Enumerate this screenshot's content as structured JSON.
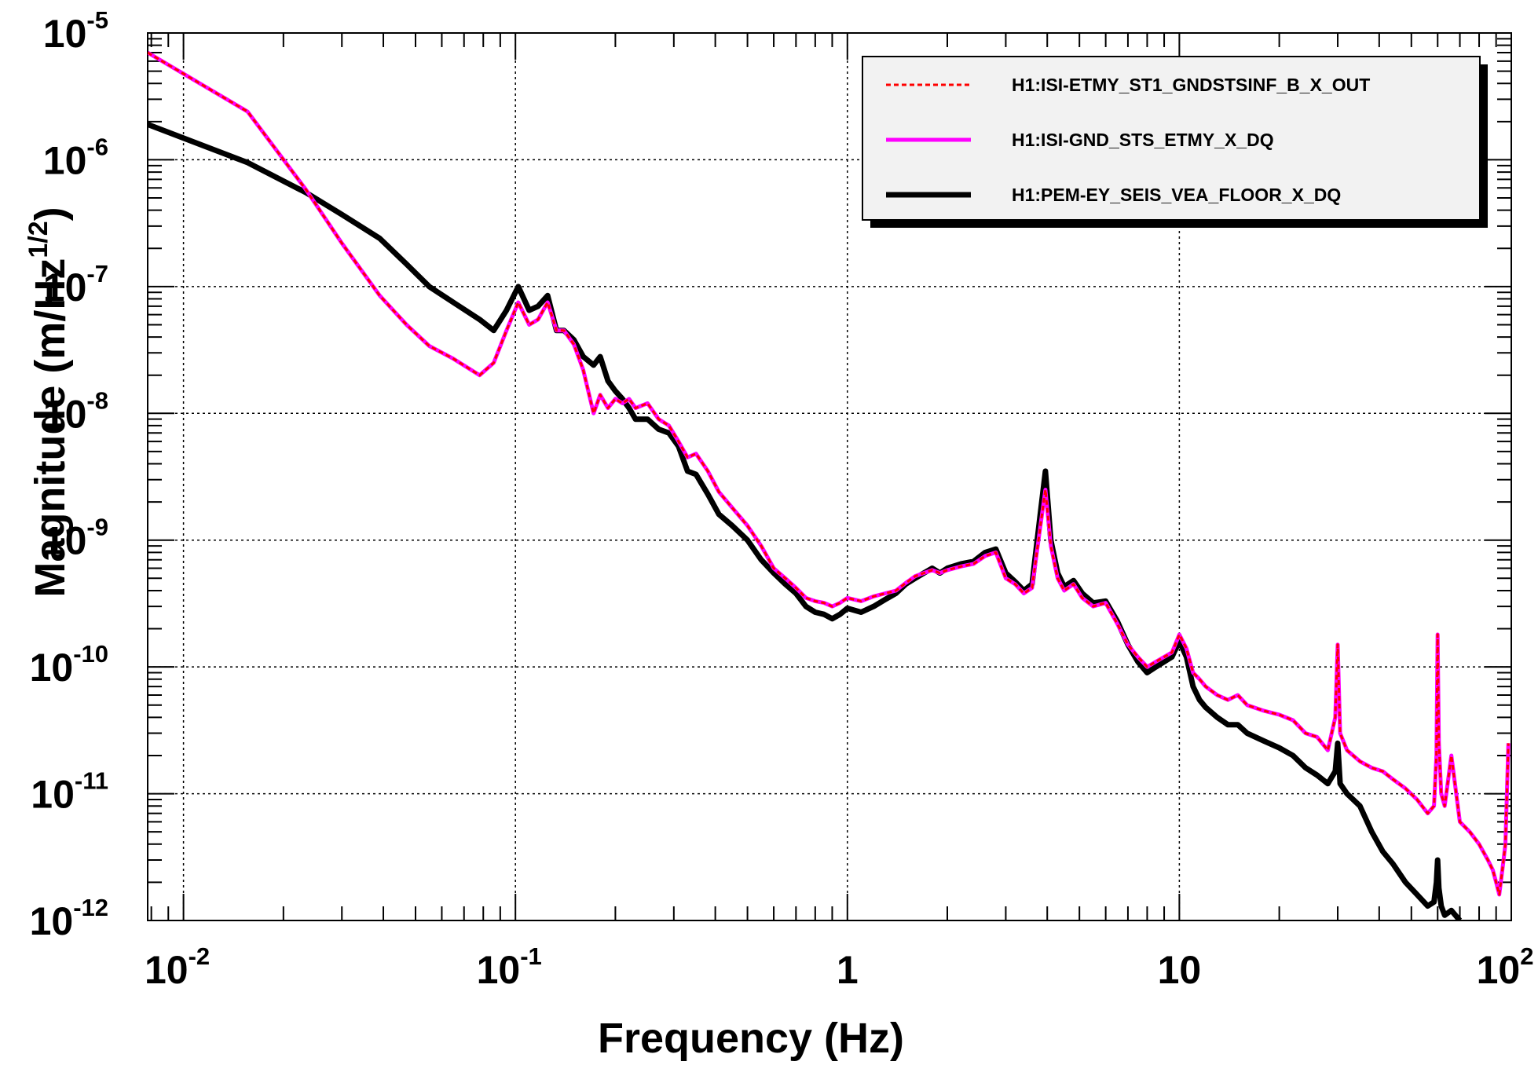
{
  "chart_data": {
    "type": "line",
    "scale": {
      "x": "log",
      "y": "log"
    },
    "xlabel": "Frequency (Hz)",
    "ylabel_main": "Magnitude (m/Hz",
    "ylabel_sup": "1/2",
    "ylabel_close": ")",
    "xlim": [
      0.0078,
      100
    ],
    "ylim": [
      1e-12,
      1e-05
    ],
    "grid": true,
    "legend_position": "top-right",
    "x_ticks": [
      {
        "value": 0.01,
        "base": "10",
        "exp": "-2"
      },
      {
        "value": 0.1,
        "base": "10",
        "exp": "-1"
      },
      {
        "value": 1,
        "base": "1",
        "exp": ""
      },
      {
        "value": 10,
        "base": "10",
        "exp": ""
      },
      {
        "value": 100,
        "base": "10",
        "exp": "2"
      }
    ],
    "y_ticks": [
      {
        "value": 1e-05,
        "base": "10",
        "exp": "-5"
      },
      {
        "value": 1e-06,
        "base": "10",
        "exp": "-6"
      },
      {
        "value": 1e-07,
        "base": "10",
        "exp": "-7"
      },
      {
        "value": 1e-08,
        "base": "10",
        "exp": "-8"
      },
      {
        "value": 1e-09,
        "base": "10",
        "exp": "-9"
      },
      {
        "value": 1e-10,
        "base": "10",
        "exp": "-10"
      },
      {
        "value": 1e-11,
        "base": "10",
        "exp": "-11"
      },
      {
        "value": 1e-12,
        "base": "10",
        "exp": "-12"
      }
    ],
    "series": [
      {
        "name": "H1:ISI-ETMY_ST1_GNDSTSINF_B_X_OUT",
        "color": "#ff0000",
        "style": "dashed",
        "x": [
          0.0078,
          0.0156,
          0.0234,
          0.03,
          0.039,
          0.047,
          0.055,
          0.065,
          0.078,
          0.086,
          0.094,
          0.102,
          0.11,
          0.117,
          0.125,
          0.133,
          0.14,
          0.15,
          0.16,
          0.172,
          0.18,
          0.19,
          0.2,
          0.21,
          0.22,
          0.23,
          0.25,
          0.27,
          0.29,
          0.31,
          0.33,
          0.35,
          0.38,
          0.41,
          0.45,
          0.5,
          0.55,
          0.6,
          0.65,
          0.7,
          0.75,
          0.8,
          0.85,
          0.9,
          0.95,
          1.0,
          1.1,
          1.2,
          1.3,
          1.4,
          1.5,
          1.6,
          1.7,
          1.8,
          1.9,
          2.0,
          2.2,
          2.4,
          2.6,
          2.8,
          3.0,
          3.2,
          3.4,
          3.6,
          3.8,
          3.95,
          4.1,
          4.3,
          4.5,
          4.8,
          5.1,
          5.5,
          6.0,
          6.5,
          7.0,
          7.5,
          8.0,
          8.5,
          9.0,
          9.5,
          10.0,
          10.5,
          11.0,
          11.5,
          12.0,
          13.0,
          14.0,
          15.0,
          16.0,
          18.0,
          20.0,
          22.0,
          24.0,
          26.0,
          28.0,
          29.5,
          30.0,
          30.5,
          32.0,
          35.0,
          38.0,
          41.0,
          44.0,
          48.0,
          52.0,
          56.0,
          58.5,
          59.5,
          60.0,
          60.5,
          61.5,
          63.0,
          66.0,
          70.0,
          75.0,
          80.0,
          85.0,
          88.0,
          90.0,
          92.0,
          94.0,
          96.0,
          98.0
        ],
        "y": [
          7e-06,
          2.4e-06,
          5.8e-07,
          2.2e-07,
          8.5e-08,
          5e-08,
          3.4e-08,
          2.7e-08,
          2e-08,
          2.5e-08,
          4.5e-08,
          7.5e-08,
          5e-08,
          5.5e-08,
          7.5e-08,
          4.5e-08,
          4.5e-08,
          3.5e-08,
          2.2e-08,
          1e-08,
          1.4e-08,
          1.1e-08,
          1.3e-08,
          1.2e-08,
          1.3e-08,
          1.1e-08,
          1.2e-08,
          9e-09,
          8e-09,
          6e-09,
          4.5e-09,
          4.8e-09,
          3.5e-09,
          2.4e-09,
          1.8e-09,
          1.3e-09,
          9e-10,
          6e-10,
          5e-10,
          4.2e-10,
          3.5e-10,
          3.3e-10,
          3.2e-10,
          3e-10,
          3.2e-10,
          3.5e-10,
          3.3e-10,
          3.6e-10,
          3.8e-10,
          4e-10,
          4.6e-10,
          5.2e-10,
          5.5e-10,
          5.8e-10,
          5.5e-10,
          5.8e-10,
          6.2e-10,
          6.5e-10,
          7.5e-10,
          8e-10,
          5e-10,
          4.5e-10,
          3.8e-10,
          4.2e-10,
          1.2e-09,
          2.5e-09,
          9e-10,
          5e-10,
          4e-10,
          4.5e-10,
          3.5e-10,
          3e-10,
          3.2e-10,
          2.2e-10,
          1.5e-10,
          1.2e-10,
          1e-10,
          1.1e-10,
          1.2e-10,
          1.3e-10,
          1.8e-10,
          1.4e-10,
          9e-11,
          8e-11,
          7e-11,
          6e-11,
          5.5e-11,
          6e-11,
          5e-11,
          4.5e-11,
          4.2e-11,
          3.8e-11,
          3e-11,
          2.8e-11,
          2.2e-11,
          4e-11,
          1.5e-10,
          3e-11,
          2.2e-11,
          1.8e-11,
          1.6e-11,
          1.5e-11,
          1.3e-11,
          1.1e-11,
          9e-12,
          7e-12,
          8e-12,
          2e-11,
          1.8e-10,
          2.5e-11,
          1e-11,
          8e-12,
          2e-11,
          6e-12,
          5e-12,
          4e-12,
          3e-12,
          2.5e-12,
          2e-12,
          1.6e-12,
          2.5e-12,
          4e-12,
          2.5e-11
        ]
      },
      {
        "name": "H1:ISI-GND_STS_ETMY_X_DQ",
        "color": "#ff00ff",
        "style": "solid",
        "x": [
          0.0078,
          0.0156,
          0.0234,
          0.03,
          0.039,
          0.047,
          0.055,
          0.065,
          0.078,
          0.086,
          0.094,
          0.102,
          0.11,
          0.117,
          0.125,
          0.133,
          0.14,
          0.15,
          0.16,
          0.172,
          0.18,
          0.19,
          0.2,
          0.21,
          0.22,
          0.23,
          0.25,
          0.27,
          0.29,
          0.31,
          0.33,
          0.35,
          0.38,
          0.41,
          0.45,
          0.5,
          0.55,
          0.6,
          0.65,
          0.7,
          0.75,
          0.8,
          0.85,
          0.9,
          0.95,
          1.0,
          1.1,
          1.2,
          1.3,
          1.4,
          1.5,
          1.6,
          1.7,
          1.8,
          1.9,
          2.0,
          2.2,
          2.4,
          2.6,
          2.8,
          3.0,
          3.2,
          3.4,
          3.6,
          3.8,
          3.95,
          4.1,
          4.3,
          4.5,
          4.8,
          5.1,
          5.5,
          6.0,
          6.5,
          7.0,
          7.5,
          8.0,
          8.5,
          9.0,
          9.5,
          10.0,
          10.5,
          11.0,
          11.5,
          12.0,
          13.0,
          14.0,
          15.0,
          16.0,
          18.0,
          20.0,
          22.0,
          24.0,
          26.0,
          28.0,
          29.5,
          30.0,
          30.5,
          32.0,
          35.0,
          38.0,
          41.0,
          44.0,
          48.0,
          52.0,
          56.0,
          58.5,
          59.5,
          60.0,
          60.5,
          61.5,
          63.0,
          66.0,
          70.0,
          75.0,
          80.0,
          85.0,
          88.0,
          90.0,
          92.0,
          94.0,
          96.0,
          98.0
        ],
        "y": [
          7e-06,
          2.4e-06,
          5.8e-07,
          2.2e-07,
          8.5e-08,
          5e-08,
          3.4e-08,
          2.7e-08,
          2e-08,
          2.5e-08,
          4.5e-08,
          7.5e-08,
          5e-08,
          5.5e-08,
          7.5e-08,
          4.5e-08,
          4.5e-08,
          3.5e-08,
          2.2e-08,
          1e-08,
          1.4e-08,
          1.1e-08,
          1.3e-08,
          1.2e-08,
          1.3e-08,
          1.1e-08,
          1.2e-08,
          9e-09,
          8e-09,
          6e-09,
          4.5e-09,
          4.8e-09,
          3.5e-09,
          2.4e-09,
          1.8e-09,
          1.3e-09,
          9e-10,
          6e-10,
          5e-10,
          4.2e-10,
          3.5e-10,
          3.3e-10,
          3.2e-10,
          3e-10,
          3.2e-10,
          3.5e-10,
          3.3e-10,
          3.6e-10,
          3.8e-10,
          4e-10,
          4.6e-10,
          5.2e-10,
          5.5e-10,
          5.8e-10,
          5.5e-10,
          5.8e-10,
          6.2e-10,
          6.5e-10,
          7.5e-10,
          8e-10,
          5e-10,
          4.5e-10,
          3.8e-10,
          4.2e-10,
          1.2e-09,
          2.5e-09,
          9e-10,
          5e-10,
          4e-10,
          4.5e-10,
          3.5e-10,
          3e-10,
          3.2e-10,
          2.2e-10,
          1.5e-10,
          1.2e-10,
          1e-10,
          1.1e-10,
          1.2e-10,
          1.3e-10,
          1.8e-10,
          1.4e-10,
          9e-11,
          8e-11,
          7e-11,
          6e-11,
          5.5e-11,
          6e-11,
          5e-11,
          4.5e-11,
          4.2e-11,
          3.8e-11,
          3e-11,
          2.8e-11,
          2.2e-11,
          4e-11,
          1.5e-10,
          3e-11,
          2.2e-11,
          1.8e-11,
          1.6e-11,
          1.5e-11,
          1.3e-11,
          1.1e-11,
          9e-12,
          7e-12,
          8e-12,
          2e-11,
          1.8e-10,
          2.5e-11,
          1e-11,
          8e-12,
          2e-11,
          6e-12,
          5e-12,
          4e-12,
          3e-12,
          2.5e-12,
          2e-12,
          1.6e-12,
          2.5e-12,
          4e-12,
          2.5e-11
        ]
      },
      {
        "name": "H1:PEM-EY_SEIS_VEA_FLOOR_X_DQ",
        "color": "#000000",
        "style": "solid",
        "x": [
          0.0078,
          0.0156,
          0.0234,
          0.03,
          0.039,
          0.047,
          0.055,
          0.065,
          0.078,
          0.086,
          0.094,
          0.102,
          0.11,
          0.117,
          0.125,
          0.133,
          0.14,
          0.15,
          0.16,
          0.172,
          0.18,
          0.19,
          0.2,
          0.21,
          0.22,
          0.23,
          0.25,
          0.27,
          0.29,
          0.31,
          0.33,
          0.35,
          0.38,
          0.41,
          0.45,
          0.5,
          0.55,
          0.6,
          0.65,
          0.7,
          0.75,
          0.8,
          0.85,
          0.9,
          0.95,
          1.0,
          1.1,
          1.2,
          1.3,
          1.4,
          1.5,
          1.6,
          1.7,
          1.8,
          1.9,
          2.0,
          2.2,
          2.4,
          2.6,
          2.8,
          3.0,
          3.2,
          3.4,
          3.6,
          3.8,
          3.95,
          4.1,
          4.3,
          4.5,
          4.8,
          5.1,
          5.5,
          6.0,
          6.5,
          7.0,
          7.5,
          8.0,
          8.5,
          9.0,
          9.5,
          10.0,
          10.5,
          11.0,
          11.5,
          12.0,
          13.0,
          14.0,
          15.0,
          16.0,
          18.0,
          20.0,
          22.0,
          24.0,
          26.0,
          28.0,
          29.5,
          30.0,
          30.5,
          32.0,
          35.0,
          38.0,
          41.0,
          44.0,
          48.0,
          52.0,
          56.0,
          58.5,
          59.5,
          60.0,
          60.5,
          61.5,
          63.0,
          66.0,
          70.0
        ],
        "y": [
          1.9e-06,
          9.5e-07,
          5.5e-07,
          3.7e-07,
          2.4e-07,
          1.5e-07,
          1e-07,
          7.5e-08,
          5.5e-08,
          4.5e-08,
          6.5e-08,
          1e-07,
          6.5e-08,
          7e-08,
          8.5e-08,
          4.5e-08,
          4.5e-08,
          3.8e-08,
          2.8e-08,
          2.4e-08,
          2.8e-08,
          1.8e-08,
          1.5e-08,
          1.3e-08,
          1.1e-08,
          9e-09,
          9e-09,
          7.5e-09,
          7e-09,
          5.5e-09,
          3.5e-09,
          3.3e-09,
          2.3e-09,
          1.6e-09,
          1.3e-09,
          1e-09,
          7e-10,
          5.5e-10,
          4.5e-10,
          3.8e-10,
          3e-10,
          2.7e-10,
          2.6e-10,
          2.4e-10,
          2.6e-10,
          2.9e-10,
          2.7e-10,
          3e-10,
          3.4e-10,
          3.8e-10,
          4.5e-10,
          5e-10,
          5.5e-10,
          6e-10,
          5.5e-10,
          6e-10,
          6.5e-10,
          6.8e-10,
          8e-10,
          8.5e-10,
          5.5e-10,
          4.7e-10,
          4e-10,
          4.5e-10,
          1.5e-09,
          3.5e-09,
          1e-09,
          5.5e-10,
          4.3e-10,
          4.8e-10,
          3.8e-10,
          3.2e-10,
          3.3e-10,
          2.3e-10,
          1.5e-10,
          1.1e-10,
          9e-11,
          1e-10,
          1.1e-10,
          1.2e-10,
          1.6e-10,
          1.2e-10,
          7e-11,
          5.5e-11,
          4.8e-11,
          4e-11,
          3.5e-11,
          3.5e-11,
          3e-11,
          2.6e-11,
          2.3e-11,
          2e-11,
          1.6e-11,
          1.4e-11,
          1.2e-11,
          1.5e-11,
          2.5e-11,
          1.2e-11,
          1e-11,
          8e-12,
          5e-12,
          3.5e-12,
          2.8e-12,
          2e-12,
          1.6e-12,
          1.3e-12,
          1.4e-12,
          2e-12,
          3e-12,
          1.8e-12,
          1.3e-12,
          1.1e-12,
          1.2e-12,
          1e-12
        ]
      }
    ]
  }
}
